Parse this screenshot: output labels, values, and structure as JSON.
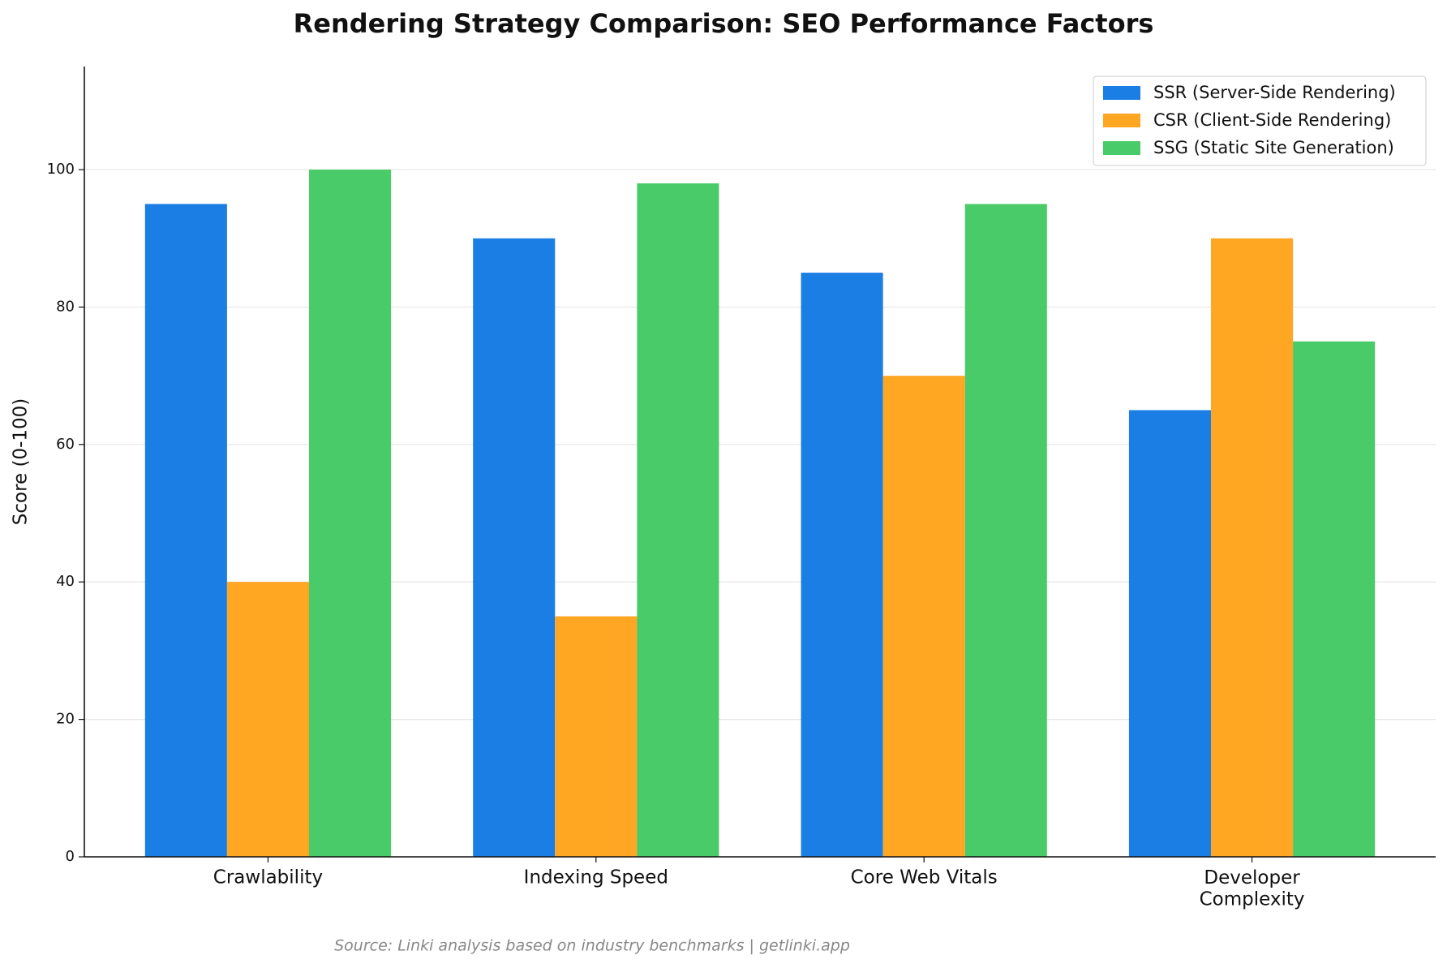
{
  "chart_data": {
    "type": "bar",
    "title": "Rendering Strategy Comparison: SEO Performance Factors",
    "y_label": "Score (0-100)",
    "source": "Source: Linki analysis based on industry benchmarks | getlinki.app",
    "categories": [
      "Crawlability",
      "Indexing Speed",
      "Core Web Vitals",
      "Developer\nComplexity"
    ],
    "series": [
      {
        "name": "SSR (Server-Side Rendering)",
        "color": "#1a7ee5",
        "values": [
          95,
          90,
          85,
          65
        ]
      },
      {
        "name": "CSR (Client-Side Rendering)",
        "color": "#ffa623",
        "values": [
          40,
          35,
          70,
          90
        ]
      },
      {
        "name": "SSG (Static Site Generation)",
        "color": "#4acb69",
        "values": [
          100,
          98,
          95,
          75
        ]
      }
    ],
    "ylim": [
      0,
      115
    ],
    "yticks": [
      0,
      20,
      40,
      60,
      80,
      100
    ],
    "grid": true,
    "legend": "upper-right"
  }
}
